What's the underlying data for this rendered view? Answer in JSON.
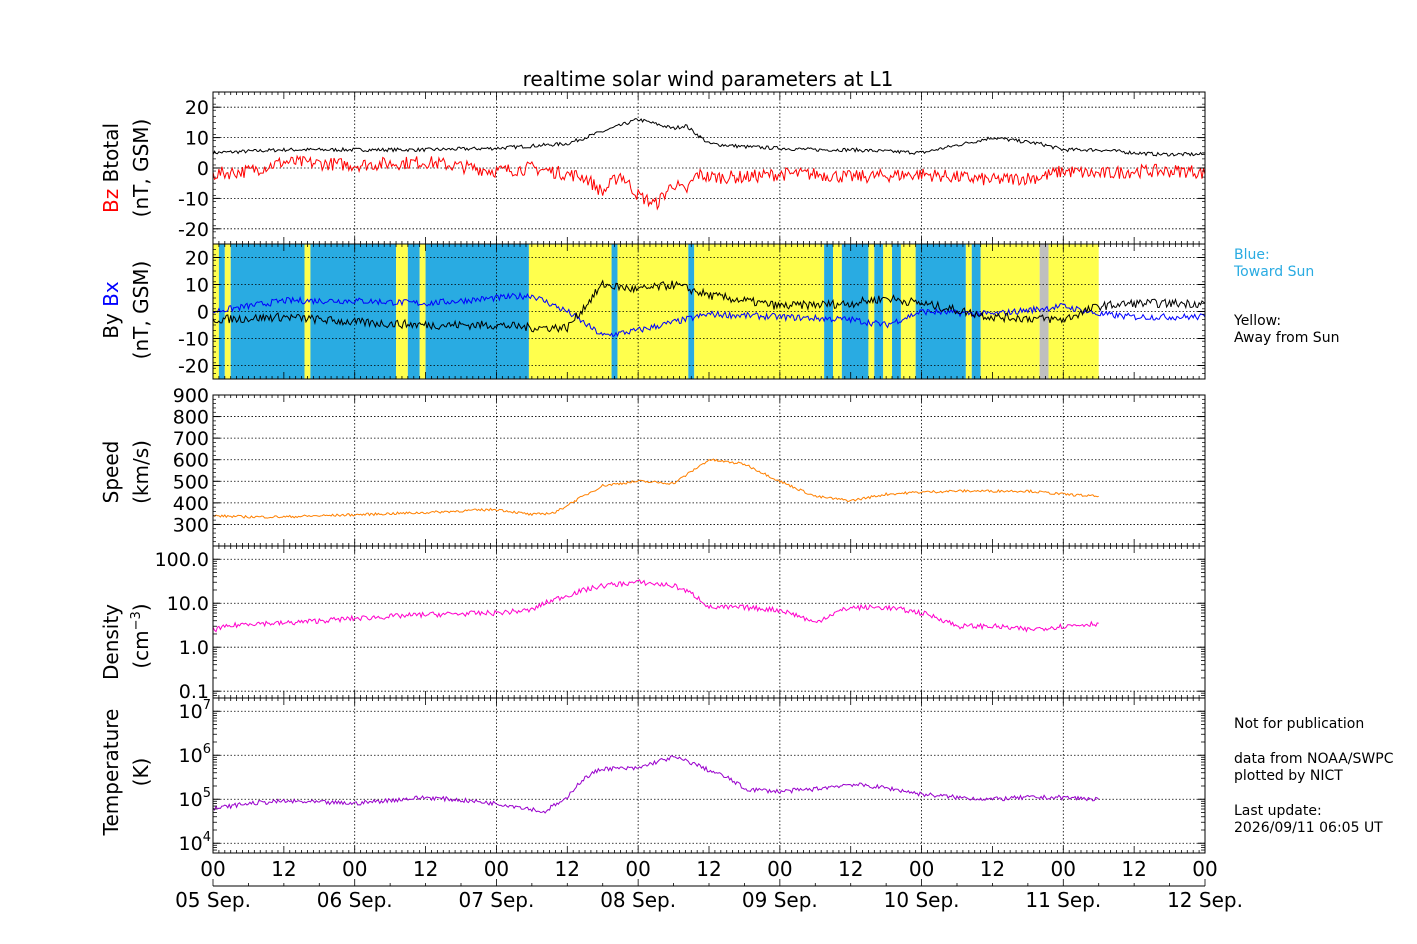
{
  "title": "realtime solar wind parameters at L1",
  "x_axis": {
    "tick_labels": [
      "00",
      "12",
      "00",
      "12",
      "00",
      "12",
      "00",
      "12",
      "00",
      "12",
      "00",
      "12",
      "00",
      "12",
      "00"
    ],
    "date_labels": [
      "05 Sep.",
      "06 Sep.",
      "07 Sep.",
      "08 Sep.",
      "09 Sep.",
      "10 Sep.",
      "11 Sep.",
      "12 Sep."
    ]
  },
  "panel_labels": {
    "btotal": {
      "bz": "Bz",
      "btotal": "Btotal",
      "unit": "(nT, GSM)"
    },
    "bxby": {
      "by": "By",
      "bx": "Bx",
      "unit": "(nT, GSM)"
    },
    "speed": {
      "name": "Speed",
      "unit": "(km/s)"
    },
    "density": {
      "name": "Density",
      "unit": "(cm",
      "unit_exp": "−3",
      "unit_close": ")"
    },
    "temperature": {
      "name": "Temperature",
      "unit": "(K)"
    }
  },
  "legend": {
    "blue_title": "Blue:",
    "blue_text": "Toward Sun",
    "yellow_title": "Yellow:",
    "yellow_text": "Away from Sun"
  },
  "notes": {
    "line1": "Not for publication",
    "line2": "data from NOAA/SWPC",
    "line3": "plotted by NICT",
    "line4": "Last update:",
    "line5": "2026/09/11 06:05 UT"
  },
  "colors": {
    "btotal": "#000000",
    "bz": "#ff0000",
    "bx": "#0000ff",
    "by": "#000000",
    "speed": "#ff8000",
    "density": "#ff00cc",
    "temperature": "#9900cc",
    "toward": "#29abe2",
    "away": "#ffff4d",
    "gap": "#bfbfbf",
    "legend_blue_text": "#29abe2"
  },
  "chart_data": [
    {
      "panel": "Bz/Btotal",
      "type": "line",
      "x_unit": "hours since 05 Sep. 00 UT",
      "ylim": [
        -25,
        25
      ],
      "yticks": [
        -20,
        -10,
        0,
        10,
        20
      ],
      "series": [
        {
          "name": "Btotal",
          "x": [
            0,
            6,
            12,
            24,
            36,
            48,
            60,
            66,
            72,
            78,
            80,
            84,
            90,
            96,
            102,
            108,
            120,
            132,
            140,
            144,
            150,
            156,
            160,
            166,
            168
          ],
          "y": [
            5,
            5.5,
            6,
            6,
            6,
            6.5,
            8,
            12,
            16,
            13,
            14,
            8,
            7,
            6.5,
            6,
            6,
            5,
            10,
            8,
            6,
            6,
            5,
            4.5,
            4.5,
            4.5
          ]
        },
        {
          "name": "Bz",
          "x": [
            0,
            6,
            12,
            24,
            36,
            48,
            54,
            60,
            63,
            66,
            69,
            72,
            75,
            78,
            80,
            82,
            84,
            90,
            96,
            102,
            108,
            120,
            132,
            140,
            144,
            150,
            156,
            160,
            166,
            168
          ],
          "y": [
            -2,
            -1,
            2,
            1,
            2,
            -1,
            0,
            -2,
            -3,
            -8,
            -2,
            -9,
            -12,
            -5,
            -8,
            -2,
            -3,
            -3,
            -2,
            -2,
            -3,
            -2,
            -4,
            -3,
            -1,
            -2,
            -1,
            -1,
            -1,
            -2
          ]
        }
      ]
    },
    {
      "panel": "Bx/By",
      "type": "line",
      "x_unit": "hours since 05 Sep. 00 UT",
      "ylim": [
        -25,
        25
      ],
      "yticks": [
        -20,
        -10,
        0,
        10,
        20
      ],
      "series": [
        {
          "name": "Bx",
          "x": [
            0,
            12,
            24,
            36,
            48,
            54,
            60,
            66,
            72,
            78,
            84,
            96,
            108,
            114,
            120,
            132,
            144,
            150,
            156,
            168
          ],
          "y": [
            0,
            4,
            4,
            3,
            5,
            6,
            0,
            -9,
            -7,
            -4,
            -1,
            -2,
            -3,
            -5,
            0,
            -1,
            2,
            -1,
            -2,
            -2
          ]
        },
        {
          "name": "By",
          "x": [
            0,
            12,
            24,
            36,
            48,
            54,
            60,
            66,
            72,
            78,
            84,
            96,
            108,
            114,
            120,
            132,
            144,
            150,
            156,
            168
          ],
          "y": [
            -3,
            -2,
            -4,
            -5,
            -5,
            -6,
            -6,
            10,
            8,
            10,
            6,
            2,
            3,
            5,
            3,
            -2,
            -3,
            2,
            3,
            3
          ]
        }
      ],
      "sector_bands": [
        {
          "sector": "away",
          "x0": 0,
          "x1": 1
        },
        {
          "sector": "toward",
          "x0": 1,
          "x1": 2
        },
        {
          "sector": "away",
          "x0": 2,
          "x1": 3
        },
        {
          "sector": "toward",
          "x0": 3,
          "x1": 15.5
        },
        {
          "sector": "away",
          "x0": 15.5,
          "x1": 16.5
        },
        {
          "sector": "toward",
          "x0": 16.5,
          "x1": 31
        },
        {
          "sector": "away",
          "x0": 31,
          "x1": 33
        },
        {
          "sector": "toward",
          "x0": 33,
          "x1": 35
        },
        {
          "sector": "away",
          "x0": 35,
          "x1": 36
        },
        {
          "sector": "toward",
          "x0": 36,
          "x1": 53.5
        },
        {
          "sector": "away",
          "x0": 53.5,
          "x1": 67.5
        },
        {
          "sector": "toward",
          "x0": 67.5,
          "x1": 68.5
        },
        {
          "sector": "away",
          "x0": 68.5,
          "x1": 80.5
        },
        {
          "sector": "toward",
          "x0": 80.5,
          "x1": 81.5
        },
        {
          "sector": "away",
          "x0": 81.5,
          "x1": 103.5
        },
        {
          "sector": "toward",
          "x0": 103.5,
          "x1": 105
        },
        {
          "sector": "away",
          "x0": 105,
          "x1": 106.5
        },
        {
          "sector": "toward",
          "x0": 106.5,
          "x1": 111
        },
        {
          "sector": "away",
          "x0": 111,
          "x1": 112
        },
        {
          "sector": "toward",
          "x0": 112,
          "x1": 113.5
        },
        {
          "sector": "away",
          "x0": 113.5,
          "x1": 115
        },
        {
          "sector": "toward",
          "x0": 115,
          "x1": 116.5
        },
        {
          "sector": "away",
          "x0": 116.5,
          "x1": 119
        },
        {
          "sector": "toward",
          "x0": 119,
          "x1": 127.5
        },
        {
          "sector": "away",
          "x0": 127.5,
          "x1": 128.5
        },
        {
          "sector": "toward",
          "x0": 128.5,
          "x1": 130
        },
        {
          "sector": "away",
          "x0": 130,
          "x1": 140
        },
        {
          "sector": "gap",
          "x0": 140,
          "x1": 141.5
        },
        {
          "sector": "away",
          "x0": 141.5,
          "x1": 150
        }
      ]
    },
    {
      "panel": "Speed",
      "type": "line",
      "x_unit": "hours since 05 Sep. 00 UT",
      "ylim": [
        200,
        900
      ],
      "yticks": [
        300,
        400,
        500,
        600,
        700,
        800,
        900
      ],
      "series": [
        {
          "name": "Speed",
          "x": [
            0,
            6,
            12,
            24,
            36,
            48,
            54,
            58,
            60,
            66,
            72,
            78,
            84,
            90,
            96,
            102,
            108,
            114,
            120,
            126,
            132,
            138,
            144,
            150
          ],
          "y": [
            340,
            335,
            335,
            345,
            355,
            370,
            345,
            355,
            390,
            480,
            500,
            490,
            600,
            580,
            500,
            430,
            410,
            440,
            450,
            455,
            455,
            455,
            440,
            430
          ]
        }
      ]
    },
    {
      "panel": "Density",
      "type": "line",
      "scale": "log",
      "x_unit": "hours since 05 Sep. 00 UT",
      "ylim": [
        0.07,
        200
      ],
      "yticks": [
        0.1,
        1.0,
        10.0,
        100.0
      ],
      "ytick_labels": [
        "0.1",
        "1.0",
        "10.0",
        "100.0"
      ],
      "series": [
        {
          "name": "Density",
          "x": [
            0,
            6,
            12,
            24,
            36,
            48,
            54,
            60,
            66,
            72,
            78,
            84,
            90,
            96,
            102,
            108,
            114,
            120,
            126,
            132,
            138,
            144,
            150
          ],
          "y": [
            2.5,
            3.5,
            3.5,
            4.5,
            5.5,
            6,
            7,
            15,
            25,
            30,
            25,
            8,
            8,
            7,
            3.5,
            8,
            8,
            6,
            3,
            3,
            2.5,
            3,
            3.5
          ]
        }
      ]
    },
    {
      "panel": "Temperature",
      "type": "line",
      "scale": "log",
      "x_unit": "hours since 05 Sep. 00 UT",
      "ylim": [
        6000,
        20000000
      ],
      "yticks": [
        10000,
        100000,
        1000000,
        10000000
      ],
      "ytick_labels": [
        "10^4",
        "10^5",
        "10^6",
        "10^7"
      ],
      "series": [
        {
          "name": "Temperature",
          "x": [
            0,
            6,
            12,
            24,
            36,
            48,
            54,
            56,
            60,
            66,
            72,
            78,
            84,
            90,
            96,
            102,
            108,
            114,
            120,
            126,
            132,
            138,
            144,
            150
          ],
          "y": [
            60000,
            80000,
            90000,
            80000,
            110000,
            80000,
            60000,
            50000,
            100000,
            500000,
            500000,
            900000,
            450000,
            170000,
            150000,
            170000,
            220000,
            180000,
            130000,
            110000,
            100000,
            110000,
            110000,
            100000
          ]
        }
      ]
    }
  ]
}
